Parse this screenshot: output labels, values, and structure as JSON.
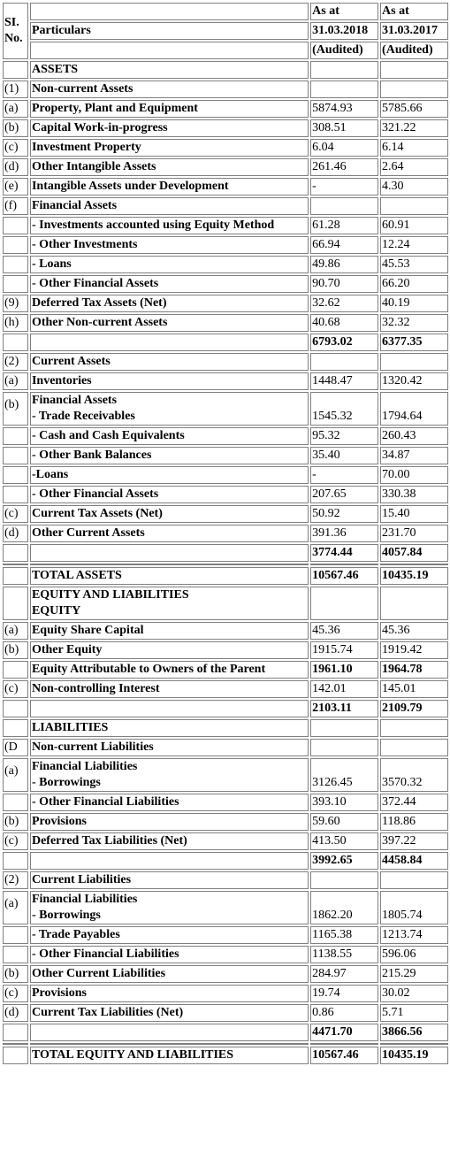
{
  "header": {
    "sl_label": "SI. No.",
    "col1_line1": "As at",
    "col2_line1": "As at",
    "particulars": "Particulars",
    "col1_date": "31.03.2018",
    "col2_date": "31.03.2017",
    "col1_status": "(Audited)",
    "col2_status": "(Audited)"
  },
  "rows": [
    {
      "sl": "",
      "label": "ASSETS",
      "v1": "",
      "v2": "",
      "bold": false
    },
    {
      "sl": "(1)",
      "label": "Non-current Assets",
      "v1": "",
      "v2": "",
      "bold": false
    },
    {
      "sl": "(a)",
      "label": "Property, Plant and Equipment",
      "v1": "5874.93",
      "v2": "5785.66",
      "bold": false
    },
    {
      "sl": "(b)",
      "label": "Capital Work-in-progress",
      "v1": "308.51",
      "v2": "321.22",
      "bold": false
    },
    {
      "sl": "(c)",
      "label": "Investment Property",
      "v1": "6.04",
      "v2": "6.14",
      "bold": false
    },
    {
      "sl": "(d)",
      "label": "Other Intangible Assets",
      "v1": "261.46",
      "v2": "2.64",
      "bold": false
    },
    {
      "sl": "(e)",
      "label": "Intangible Assets under Development",
      "v1": "-",
      "v2": "4.30",
      "bold": false
    },
    {
      "sl": "(f)",
      "label": "Financial Assets",
      "v1": "",
      "v2": "",
      "bold": false
    },
    {
      "sl": "",
      "label": "- Investments accounted using Equity Method",
      "v1": "61.28",
      "v2": "60.91",
      "bold": false
    },
    {
      "sl": "",
      "label": "- Other Investments",
      "v1": "66.94",
      "v2": "12.24",
      "bold": false
    },
    {
      "sl": "",
      "label": "- Loans",
      "v1": "49.86",
      "v2": "45.53",
      "bold": false
    },
    {
      "sl": "",
      "label": "- Other Financial Assets",
      "v1": "90.70",
      "v2": "66.20",
      "bold": false
    },
    {
      "sl": "(9)",
      "label": "Deferred Tax Assets (Net)",
      "v1": "32.62",
      "v2": "40.19",
      "bold": false
    },
    {
      "sl": "(h)",
      "label": "Other Non-current Assets",
      "v1": "40.68",
      "v2": "32.32",
      "bold": false
    },
    {
      "sl": "",
      "label": "",
      "v1": "6793.02",
      "v2": "6377.35",
      "bold": true
    },
    {
      "sl": "(2)",
      "label": "Current Assets",
      "v1": "",
      "v2": "",
      "bold": false
    },
    {
      "sl": "(a)",
      "label": "Inventories",
      "v1": "1448.47",
      "v2": "1320.42",
      "bold": false
    },
    {
      "sl": "(b)",
      "label": "Financial Assets",
      "label2": "- Trade Receivables",
      "v1": "1545.32",
      "v2": "1794.64",
      "bold": false
    },
    {
      "sl": "",
      "label": "- Cash and Cash Equivalents",
      "v1": "95.32",
      "v2": "260.43",
      "bold": false
    },
    {
      "sl": "",
      "label": "- Other Bank Balances",
      "v1": "35.40",
      "v2": "34.87",
      "bold": false
    },
    {
      "sl": "",
      "label": "-Loans",
      "v1": "-",
      "v2": "70.00",
      "bold": false
    },
    {
      "sl": "",
      "label": "- Other Financial Assets",
      "v1": "207.65",
      "v2": "330.38",
      "bold": false
    },
    {
      "sl": "(c)",
      "label": "Current Tax Assets (Net)",
      "v1": "50.92",
      "v2": "15.40",
      "bold": false
    },
    {
      "sl": "(d)",
      "label": "Other Current Assets",
      "v1": "391.36",
      "v2": "231.70",
      "bold": false
    },
    {
      "sl": "",
      "label": "",
      "v1": "3774.44",
      "v2": "4057.84",
      "bold": true
    },
    {
      "sl": "",
      "label": "",
      "v1": "",
      "v2": "",
      "bold": false
    },
    {
      "sl": "",
      "label": "TOTAL ASSETS",
      "v1": "10567.46",
      "v2": "10435.19",
      "bold": true
    },
    {
      "sl": "",
      "label": "EQUITY AND LIABILITIES",
      "label2": "EQUITY",
      "v1": "",
      "v2": "",
      "bold": false
    },
    {
      "sl": "(a)",
      "label": "Equity Share Capital",
      "v1": "45.36",
      "v2": "45.36",
      "bold": false
    },
    {
      "sl": "(b)",
      "label": "Other Equity",
      "v1": "1915.74",
      "v2": "1919.42",
      "bold": false
    },
    {
      "sl": "",
      "label": "Equity Attributable to Owners of the Parent",
      "v1": "1961.10",
      "v2": "1964.78",
      "bold": true
    },
    {
      "sl": "(c)",
      "label": "Non-controlling Interest",
      "v1": "142.01",
      "v2": "145.01",
      "bold": false
    },
    {
      "sl": "",
      "label": "",
      "v1": "2103.11",
      "v2": "2109.79",
      "bold": true
    },
    {
      "sl": "",
      "label": "LIABILITIES",
      "v1": "",
      "v2": "",
      "bold": false
    },
    {
      "sl": "(D",
      "label": "Non-current Liabilities",
      "v1": "",
      "v2": "",
      "bold": false
    },
    {
      "sl": "(a)",
      "label": "Financial Liabilities",
      "label2": "- Borrowings",
      "v1": "3126.45",
      "v2": "3570.32",
      "bold": false
    },
    {
      "sl": "",
      "label": "- Other Financial Liabilities",
      "v1": "393.10",
      "v2": "372.44",
      "bold": false
    },
    {
      "sl": "(b)",
      "label": "Provisions",
      "v1": "59.60",
      "v2": "118.86",
      "bold": false
    },
    {
      "sl": "(c)",
      "label": "Deferred Tax Liabilities (Net)",
      "v1": "413.50",
      "v2": "397.22",
      "bold": false
    },
    {
      "sl": "",
      "label": "",
      "v1": "3992.65",
      "v2": "4458.84",
      "bold": true
    },
    {
      "sl": "(2)",
      "label": "Current Liabilities",
      "v1": "",
      "v2": "",
      "bold": false
    },
    {
      "sl": "(a)",
      "label": "Financial Liabilities",
      "label2": "- Borrowings",
      "v1": "1862.20",
      "v2": "1805.74",
      "bold": false
    },
    {
      "sl": "",
      "label": "- Trade Payables",
      "v1": "1165.38",
      "v2": "1213.74",
      "bold": false
    },
    {
      "sl": "",
      "label": "- Other Financial Liabilities",
      "v1": "1138.55",
      "v2": "596.06",
      "bold": false
    },
    {
      "sl": "(b)",
      "label": "Other Current Liabilities",
      "v1": "284.97",
      "v2": "215.29",
      "bold": false
    },
    {
      "sl": "(c)",
      "label": "Provisions",
      "v1": "19.74",
      "v2": "30.02",
      "bold": false
    },
    {
      "sl": "(d)",
      "label": "Current Tax Liabilities (Net)",
      "v1": "0.86",
      "v2": "5.71",
      "bold": false
    },
    {
      "sl": "",
      "label": "",
      "v1": "4471.70",
      "v2": "3866.56",
      "bold": true
    },
    {
      "sl": "",
      "label": "",
      "v1": "",
      "v2": "",
      "bold": false
    },
    {
      "sl": "",
      "label": "TOTAL EQUITY AND LIABILITIES",
      "v1": "10567.46",
      "v2": "10435.19",
      "bold": true
    }
  ]
}
